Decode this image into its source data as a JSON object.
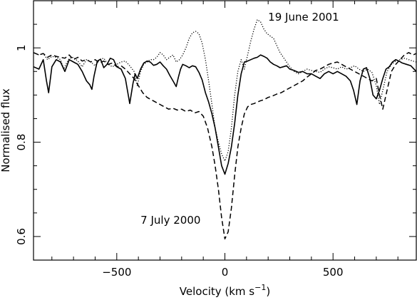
{
  "chart_data": {
    "type": "line",
    "xlabel": "Velocity (km s",
    "xlabel_sup": "−1",
    "xlabel_close": ")",
    "ylabel": "Normalised flux",
    "xlim": [
      -885,
      885
    ],
    "ylim": [
      0.55,
      1.1
    ],
    "xticks": [
      -500,
      0,
      500
    ],
    "xtick_labels": [
      "−500",
      "0",
      "500"
    ],
    "yticks": [
      0.6,
      0.8,
      1.0
    ],
    "ytick_labels": [
      "0.6",
      "0.8",
      "1"
    ],
    "grid": false,
    "annotations": [
      {
        "text": "19 June 2001",
        "x": 200,
        "y": 1.058
      },
      {
        "text": "7 July 2000",
        "x": -390,
        "y": 0.627
      }
    ],
    "series": [
      {
        "style": "solid",
        "x": [
          -885,
          -860,
          -840,
          -825,
          -815,
          -800,
          -780,
          -760,
          -740,
          -720,
          -700,
          -680,
          -660,
          -640,
          -625,
          -615,
          -605,
          -590,
          -575,
          -560,
          -545,
          -530,
          -515,
          -500,
          -480,
          -460,
          -440,
          -425,
          -415,
          -405,
          -390,
          -375,
          -360,
          -345,
          -330,
          -315,
          -300,
          -285,
          -270,
          -255,
          -240,
          -225,
          -215,
          -205,
          -195,
          -180,
          -165,
          -150,
          -135,
          -120,
          -105,
          -90,
          -75,
          -60,
          -45,
          -30,
          -15,
          0,
          15,
          30,
          45,
          60,
          75,
          90,
          105,
          120,
          135,
          150,
          165,
          180,
          195,
          210,
          225,
          240,
          255,
          270,
          285,
          300,
          320,
          340,
          360,
          380,
          400,
          420,
          440,
          460,
          480,
          500,
          520,
          540,
          560,
          580,
          595,
          610,
          625,
          640,
          655,
          670,
          685,
          700,
          715,
          730,
          745,
          760,
          775,
          790,
          805,
          820,
          840,
          860,
          885
        ],
        "y": [
          0.96,
          0.955,
          0.975,
          0.93,
          0.905,
          0.96,
          0.975,
          0.97,
          0.95,
          0.975,
          0.97,
          0.965,
          0.95,
          0.93,
          0.922,
          0.912,
          0.94,
          0.972,
          0.976,
          0.958,
          0.965,
          0.978,
          0.975,
          0.96,
          0.955,
          0.935,
          0.882,
          0.925,
          0.945,
          0.935,
          0.955,
          0.968,
          0.972,
          0.97,
          0.963,
          0.965,
          0.97,
          0.962,
          0.955,
          0.942,
          0.93,
          0.918,
          0.938,
          0.955,
          0.965,
          0.962,
          0.958,
          0.962,
          0.96,
          0.948,
          0.932,
          0.905,
          0.885,
          0.86,
          0.83,
          0.79,
          0.75,
          0.732,
          0.755,
          0.79,
          0.84,
          0.9,
          0.945,
          0.97,
          0.972,
          0.975,
          0.978,
          0.98,
          0.985,
          0.982,
          0.978,
          0.97,
          0.965,
          0.962,
          0.958,
          0.96,
          0.962,
          0.955,
          0.952,
          0.948,
          0.95,
          0.945,
          0.945,
          0.94,
          0.935,
          0.945,
          0.95,
          0.945,
          0.95,
          0.945,
          0.94,
          0.93,
          0.91,
          0.88,
          0.93,
          0.955,
          0.958,
          0.935,
          0.9,
          0.892,
          0.91,
          0.935,
          0.955,
          0.96,
          0.97,
          0.975,
          0.972,
          0.968,
          0.965,
          0.962,
          0.95
        ]
      },
      {
        "style": "dotted",
        "x": [
          -885,
          -860,
          -840,
          -820,
          -800,
          -780,
          -760,
          -745,
          -735,
          -720,
          -700,
          -680,
          -660,
          -640,
          -620,
          -600,
          -580,
          -560,
          -540,
          -520,
          -500,
          -480,
          -460,
          -440,
          -420,
          -405,
          -390,
          -375,
          -360,
          -345,
          -330,
          -315,
          -300,
          -285,
          -270,
          -255,
          -240,
          -225,
          -210,
          -195,
          -180,
          -165,
          -150,
          -135,
          -120,
          -105,
          -90,
          -75,
          -60,
          -45,
          -30,
          -15,
          0,
          15,
          30,
          45,
          60,
          75,
          90,
          105,
          120,
          135,
          150,
          165,
          180,
          195,
          210,
          225,
          240,
          255,
          270,
          285,
          300,
          320,
          340,
          360,
          380,
          400,
          420,
          440,
          460,
          480,
          500,
          520,
          540,
          560,
          580,
          600,
          620,
          640,
          660,
          680,
          700,
          715,
          730,
          750,
          770,
          790,
          810,
          830,
          850,
          870,
          885
        ],
        "y": [
          0.99,
          0.985,
          0.988,
          0.975,
          0.982,
          0.98,
          0.975,
          0.955,
          0.965,
          0.978,
          0.98,
          0.972,
          0.96,
          0.975,
          0.97,
          0.962,
          0.975,
          0.978,
          0.965,
          0.96,
          0.965,
          0.97,
          0.972,
          0.962,
          0.95,
          0.92,
          0.95,
          0.965,
          0.97,
          0.975,
          0.975,
          0.98,
          0.99,
          0.985,
          0.975,
          0.98,
          0.985,
          0.97,
          0.975,
          0.985,
          1.0,
          1.02,
          1.032,
          1.035,
          1.03,
          1.01,
          0.975,
          0.93,
          0.88,
          0.83,
          0.8,
          0.775,
          0.76,
          0.78,
          0.83,
          0.9,
          0.95,
          0.975,
          0.955,
          0.985,
          1.015,
          1.04,
          1.06,
          1.055,
          1.04,
          1.03,
          1.025,
          1.02,
          1.005,
          0.99,
          0.98,
          0.97,
          0.96,
          0.95,
          0.945,
          0.95,
          0.955,
          0.952,
          0.95,
          0.948,
          0.955,
          0.96,
          0.958,
          0.955,
          0.96,
          0.955,
          0.958,
          0.962,
          0.955,
          0.95,
          0.955,
          0.948,
          0.92,
          0.88,
          0.91,
          0.95,
          0.965,
          0.972,
          0.975,
          0.978,
          0.975,
          0.972,
          0.97
        ]
      },
      {
        "style": "dashed",
        "x": [
          -885,
          -860,
          -840,
          -820,
          -800,
          -780,
          -760,
          -740,
          -720,
          -700,
          -680,
          -660,
          -640,
          -620,
          -600,
          -580,
          -560,
          -540,
          -520,
          -500,
          -480,
          -460,
          -440,
          -420,
          -400,
          -380,
          -360,
          -340,
          -320,
          -300,
          -280,
          -260,
          -240,
          -220,
          -200,
          -180,
          -160,
          -140,
          -120,
          -100,
          -80,
          -60,
          -45,
          -30,
          -15,
          0,
          15,
          30,
          45,
          60,
          75,
          90,
          105,
          120,
          135,
          150,
          165,
          180,
          200,
          220,
          240,
          260,
          280,
          300,
          320,
          340,
          360,
          380,
          400,
          420,
          440,
          460,
          480,
          500,
          520,
          540,
          560,
          580,
          600,
          620,
          640,
          660,
          680,
          700,
          715,
          730,
          750,
          770,
          790,
          810,
          830,
          850,
          870,
          885
        ],
        "y": [
          0.99,
          0.985,
          0.988,
          0.98,
          0.985,
          0.982,
          0.98,
          0.978,
          0.985,
          0.975,
          0.98,
          0.972,
          0.975,
          0.97,
          0.975,
          0.968,
          0.972,
          0.965,
          0.968,
          0.96,
          0.962,
          0.955,
          0.945,
          0.935,
          0.92,
          0.905,
          0.895,
          0.89,
          0.885,
          0.88,
          0.875,
          0.87,
          0.872,
          0.868,
          0.87,
          0.865,
          0.868,
          0.862,
          0.865,
          0.855,
          0.83,
          0.79,
          0.75,
          0.7,
          0.64,
          0.595,
          0.61,
          0.66,
          0.73,
          0.79,
          0.83,
          0.86,
          0.875,
          0.88,
          0.882,
          0.885,
          0.888,
          0.89,
          0.895,
          0.898,
          0.902,
          0.905,
          0.91,
          0.915,
          0.92,
          0.925,
          0.93,
          0.938,
          0.945,
          0.952,
          0.955,
          0.96,
          0.965,
          0.968,
          0.97,
          0.965,
          0.96,
          0.955,
          0.95,
          0.945,
          0.94,
          0.935,
          0.93,
          0.935,
          0.9,
          0.87,
          0.91,
          0.95,
          0.965,
          0.975,
          0.985,
          0.99,
          0.985,
          0.988
        ]
      }
    ]
  }
}
